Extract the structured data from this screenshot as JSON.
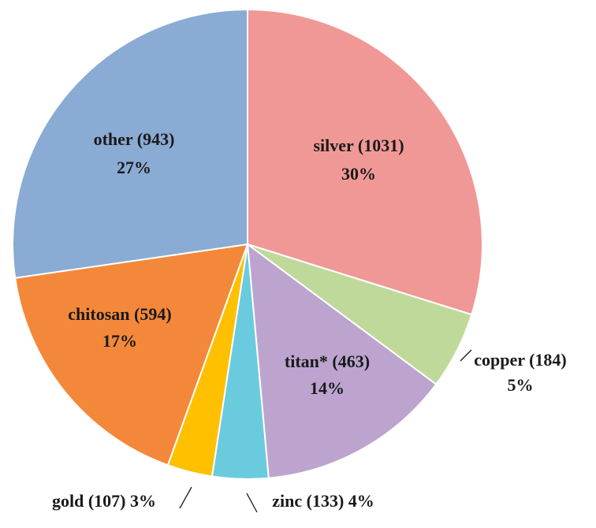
{
  "chart_data": {
    "type": "pie",
    "title": "",
    "slices": [
      {
        "name": "silver",
        "count": 1031,
        "count_label": "(1031)",
        "percent_label": "30%",
        "color": "#f09896"
      },
      {
        "name": "copper",
        "count": 184,
        "count_label": "(184)",
        "percent_label": "5%",
        "color": "#bfd99a"
      },
      {
        "name": "titan*",
        "count": 463,
        "count_label": "(463)",
        "percent_label": "14%",
        "color": "#bca4cf"
      },
      {
        "name": "zinc",
        "count": 133,
        "count_label": "(133)",
        "percent_label": "4%",
        "color": "#6bcbde"
      },
      {
        "name": "gold",
        "count": 107,
        "count_label": "(107)",
        "percent_label": "3%",
        "color": "#ffc000"
      },
      {
        "name": "chitosan",
        "count": 594,
        "count_label": "(594)",
        "percent_label": "17%",
        "color": "#f4883a"
      },
      {
        "name": "other",
        "count": 943,
        "count_label": "(943)",
        "percent_label": "27%",
        "color": "#8aabd3"
      }
    ],
    "start_angle": "12 o'clock",
    "direction": "clockwise",
    "legend": "none"
  }
}
